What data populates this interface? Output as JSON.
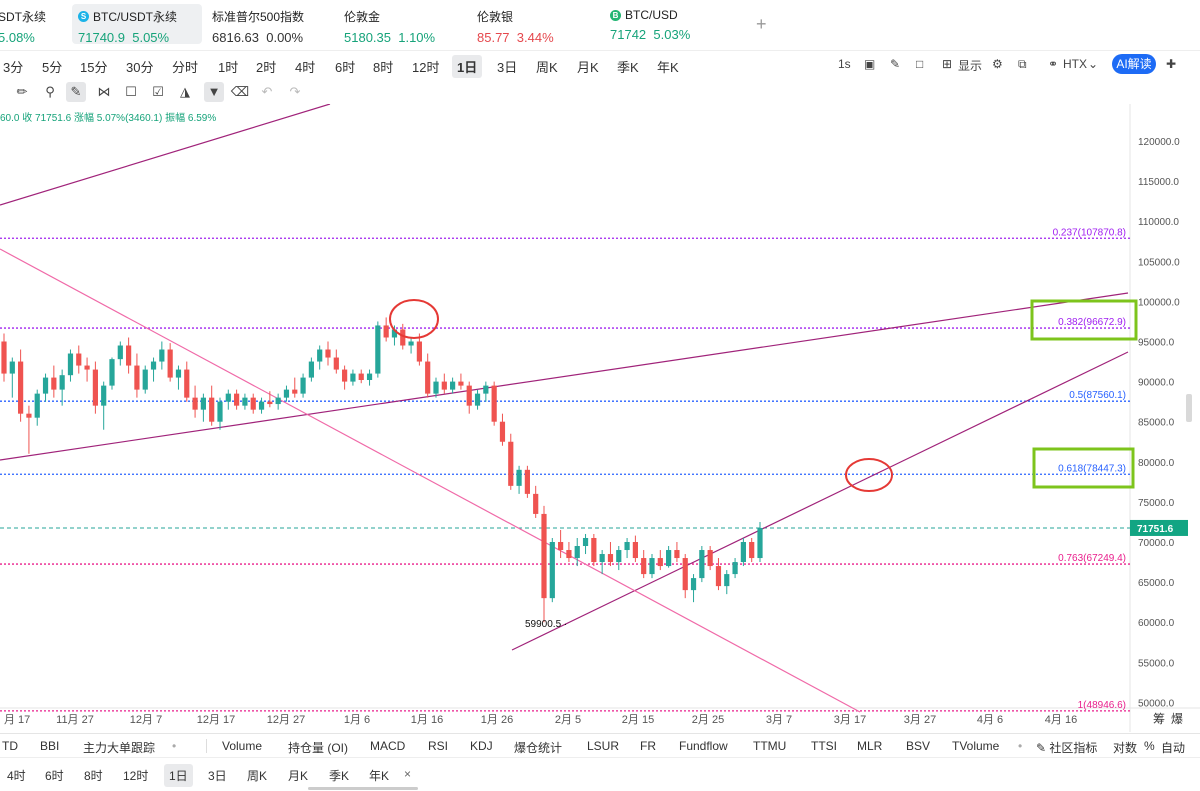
{
  "tickers": [
    {
      "name": "SDT永续",
      "price": "",
      "change": "5.08%",
      "color": "green",
      "icon": ""
    },
    {
      "name": "BTC/USDT永续",
      "price": "71740.9",
      "change": "5.05%",
      "color": "green",
      "icon": "bitcoin-s-icon",
      "active": true
    },
    {
      "name": "标准普尔500指数",
      "price": "6816.63",
      "change": "0.00%",
      "color": "neutral",
      "icon": ""
    },
    {
      "name": "伦敦金",
      "price": "5180.35",
      "change": "1.10%",
      "color": "green",
      "icon": ""
    },
    {
      "name": "伦敦银",
      "price": "85.77",
      "change": "3.44%",
      "color": "red",
      "icon": ""
    },
    {
      "name": "BTC/USD",
      "price": "71742",
      "change": "5.03%",
      "color": "green",
      "icon": "bitcoin-b-icon"
    }
  ],
  "add_ticker_label": "+",
  "intervals": [
    "3分",
    "5分",
    "15分",
    "30分",
    "分时",
    "1时",
    "2时",
    "4时",
    "6时",
    "8时",
    "12时",
    "1日",
    "3日",
    "周K",
    "月K",
    "季K",
    "年K"
  ],
  "selected_interval": "1日",
  "right_tools": {
    "refresh": "1s",
    "display": "显示",
    "exchange": "HTX",
    "ai": "AI解读"
  },
  "ohlc_line": "60.0  收 71751.6  涨幅 5.07%(3460.1)  振幅 6.59%",
  "price_axis": {
    "labels": [
      "120000.0",
      "115000.0",
      "110000.0",
      "105000.0",
      "100000.0",
      "95000.0",
      "90000.0",
      "85000.0",
      "80000.0",
      "75000.0",
      "70000.0",
      "65000.0",
      "60000.0",
      "55000.0",
      "50000.0"
    ],
    "current_price": "71751.6"
  },
  "fib_levels": [
    {
      "label": "0.237(107870.8)",
      "price": 107870.8,
      "color": "#a020f0"
    },
    {
      "label": "0.382(96672.9)",
      "price": 96672.9,
      "color": "#a020f0"
    },
    {
      "label": "0.5(87560.1)",
      "price": 87560.1,
      "color": "#2962ff"
    },
    {
      "label": "0.618(78447.3)",
      "price": 78447.3,
      "color": "#2962ff"
    },
    {
      "label": "0.763(67249.4)",
      "price": 67249.4,
      "color": "#e91e8c"
    },
    {
      "label": "1(48946.6)",
      "price": 48946.6,
      "color": "#e91e8c"
    }
  ],
  "low_label": "59900.5",
  "date_axis": [
    "月 17",
    "11月 27",
    "12月 7",
    "12月 17",
    "12月 27",
    "1月 6",
    "1月 16",
    "1月 26",
    "2月 5",
    "2月 15",
    "2月 25",
    "3月 7",
    "3月 17",
    "3月 27",
    "4月 6",
    "4月 16"
  ],
  "date_axis_right": [
    "筹",
    "爆"
  ],
  "chart_data": {
    "type": "candlestick",
    "price_range": [
      47000,
      124000
    ],
    "candles_ohlc": [
      [
        95000,
        96000,
        90000,
        91000
      ],
      [
        91000,
        93000,
        88000,
        92500
      ],
      [
        92500,
        94000,
        85000,
        86000
      ],
      [
        86000,
        87000,
        81000,
        85500
      ],
      [
        85500,
        89000,
        84500,
        88500
      ],
      [
        88500,
        91000,
        87500,
        90500
      ],
      [
        90500,
        92000,
        88000,
        89000
      ],
      [
        89000,
        91500,
        87000,
        90800
      ],
      [
        90800,
        94000,
        90000,
        93500
      ],
      [
        93500,
        94500,
        91000,
        92000
      ],
      [
        92000,
        93000,
        90000,
        91500
      ],
      [
        91500,
        92500,
        86000,
        87000
      ],
      [
        87000,
        90000,
        84000,
        89500
      ],
      [
        89500,
        93000,
        89000,
        92800
      ],
      [
        92800,
        95000,
        92000,
        94500
      ],
      [
        94500,
        95500,
        91000,
        92000
      ],
      [
        92000,
        93500,
        88000,
        89000
      ],
      [
        89000,
        92000,
        88500,
        91500
      ],
      [
        91500,
        93000,
        90000,
        92500
      ],
      [
        92500,
        95000,
        91500,
        94000
      ],
      [
        94000,
        94800,
        90000,
        90500
      ],
      [
        90500,
        92000,
        89000,
        91500
      ],
      [
        91500,
        92500,
        87500,
        88000
      ],
      [
        88000,
        89500,
        85500,
        86500
      ],
      [
        86500,
        88500,
        85000,
        88000
      ],
      [
        88000,
        89500,
        84500,
        85000
      ],
      [
        85000,
        88000,
        84000,
        87500
      ],
      [
        87500,
        89000,
        86500,
        88500
      ],
      [
        88500,
        89000,
        86500,
        87000
      ],
      [
        87000,
        88500,
        86500,
        88000
      ],
      [
        88000,
        88500,
        86000,
        86500
      ],
      [
        86500,
        88000,
        86000,
        87500
      ],
      [
        87500,
        88800,
        86800,
        87200
      ],
      [
        87200,
        88500,
        86500,
        88000
      ],
      [
        88000,
        89500,
        87500,
        89000
      ],
      [
        89000,
        90500,
        88000,
        88500
      ],
      [
        88500,
        91000,
        88000,
        90500
      ],
      [
        90500,
        93000,
        90000,
        92500
      ],
      [
        92500,
        94500,
        91500,
        94000
      ],
      [
        94000,
        95000,
        92000,
        93000
      ],
      [
        93000,
        94000,
        91000,
        91500
      ],
      [
        91500,
        92000,
        89000,
        90000
      ],
      [
        90000,
        91500,
        89500,
        91000
      ],
      [
        91000,
        91500,
        89800,
        90200
      ],
      [
        90200,
        91500,
        89500,
        91000
      ],
      [
        91000,
        97500,
        90500,
        97000
      ],
      [
        97000,
        98000,
        95000,
        95500
      ],
      [
        95500,
        97000,
        94500,
        96500
      ],
      [
        96500,
        97200,
        94000,
        94500
      ],
      [
        94500,
        95500,
        93500,
        95000
      ],
      [
        95000,
        96000,
        92000,
        92500
      ],
      [
        92500,
        93500,
        88000,
        88500
      ],
      [
        88500,
        90500,
        88000,
        90000
      ],
      [
        90000,
        91000,
        88500,
        89000
      ],
      [
        89000,
        90500,
        88500,
        90000
      ],
      [
        90000,
        91000,
        89000,
        89500
      ],
      [
        89500,
        90000,
        86000,
        87000
      ],
      [
        87000,
        89000,
        86500,
        88500
      ],
      [
        88500,
        90000,
        87500,
        89500
      ],
      [
        89500,
        90000,
        84500,
        85000
      ],
      [
        85000,
        86000,
        82000,
        82500
      ],
      [
        82500,
        83500,
        76500,
        77000
      ],
      [
        77000,
        79500,
        76000,
        79000
      ],
      [
        79000,
        79500,
        75500,
        76000
      ],
      [
        76000,
        77000,
        73000,
        73500
      ],
      [
        73500,
        74500,
        60000,
        63000
      ],
      [
        63000,
        70500,
        62500,
        70000
      ],
      [
        70000,
        71500,
        68000,
        69000
      ],
      [
        69000,
        70000,
        67500,
        68000
      ],
      [
        68000,
        70500,
        67000,
        69500
      ],
      [
        69500,
        71000,
        68500,
        70500
      ],
      [
        70500,
        71000,
        67000,
        67500
      ],
      [
        67500,
        69000,
        66000,
        68500
      ],
      [
        68500,
        70000,
        67000,
        67500
      ],
      [
        67500,
        69500,
        66500,
        69000
      ],
      [
        69000,
        70500,
        68000,
        70000
      ],
      [
        70000,
        70800,
        67500,
        68000
      ],
      [
        68000,
        69000,
        65500,
        66000
      ],
      [
        66000,
        68500,
        65500,
        68000
      ],
      [
        68000,
        69000,
        66500,
        67000
      ],
      [
        67000,
        69500,
        66800,
        69000
      ],
      [
        69000,
        70000,
        67500,
        68000
      ],
      [
        68000,
        68500,
        63000,
        64000
      ],
      [
        64000,
        66000,
        62500,
        65500
      ],
      [
        65500,
        69500,
        65000,
        69000
      ],
      [
        69000,
        69500,
        66500,
        67000
      ],
      [
        67000,
        68000,
        64000,
        64500
      ],
      [
        64500,
        66500,
        63500,
        66000
      ],
      [
        66000,
        68000,
        65500,
        67500
      ],
      [
        67500,
        70500,
        67000,
        70000
      ],
      [
        70000,
        70500,
        67500,
        68000
      ],
      [
        68000,
        72500,
        67500,
        71751.6
      ]
    ]
  }
}
